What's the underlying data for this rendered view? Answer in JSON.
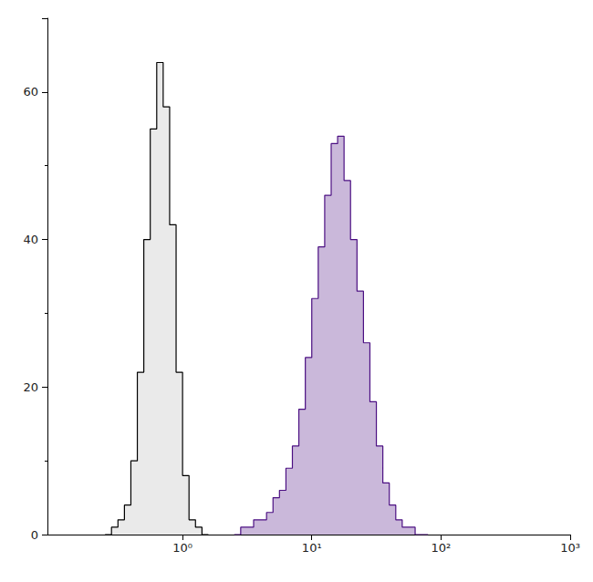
{
  "chart_data": {
    "type": "histogram",
    "log": "x",
    "grid": false,
    "xlim": [
      0.09,
      1000
    ],
    "xticks": [
      {
        "value": 1,
        "label": "10⁰"
      },
      {
        "value": 10,
        "label": "10¹"
      },
      {
        "value": 100,
        "label": "10²"
      },
      {
        "value": 1000,
        "label": "10³"
      }
    ],
    "ylim": [
      0,
      70
    ],
    "yticks": [
      0,
      20,
      40,
      60
    ],
    "series": [
      {
        "color": "#000000",
        "bins": [
          0.2512,
          0.2818,
          0.3162,
          0.3548,
          0.3981,
          0.4467,
          0.5012,
          0.5623,
          0.631,
          0.7079,
          0.7943,
          0.8913,
          1,
          1.122,
          1.259,
          1.413,
          1.585
        ],
        "counts": [
          0,
          1,
          2,
          4,
          10,
          22,
          40,
          55,
          64,
          58,
          42,
          22,
          8,
          2,
          1,
          0
        ]
      },
      {
        "color": "#4b0f82",
        "bins": [
          2.512,
          2.818,
          3.162,
          3.548,
          3.981,
          4.467,
          5.012,
          5.623,
          6.31,
          7.079,
          7.943,
          8.913,
          10,
          11.22,
          12.59,
          14.13,
          15.85,
          17.78,
          19.95,
          22.39,
          25.12,
          28.18,
          31.62,
          35.48,
          39.81,
          44.67,
          50.12,
          56.23,
          63.1,
          70.79,
          79.43
        ],
        "counts": [
          0,
          1,
          1,
          2,
          2,
          3,
          5,
          6,
          9,
          12,
          17,
          24,
          32,
          39,
          46,
          53,
          54,
          48,
          40,
          33,
          26,
          18,
          12,
          7,
          4,
          2,
          1,
          1,
          0,
          0
        ]
      }
    ]
  }
}
